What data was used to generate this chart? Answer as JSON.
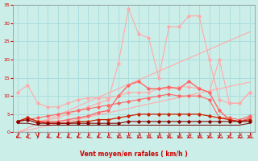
{
  "x": [
    0,
    1,
    2,
    3,
    4,
    5,
    6,
    7,
    8,
    9,
    10,
    11,
    12,
    13,
    14,
    15,
    16,
    17,
    18,
    19,
    20,
    21,
    22,
    23
  ],
  "lines": [
    {
      "y": [
        3,
        4,
        3,
        3.5,
        4,
        5,
        6,
        7,
        8,
        9,
        19,
        34,
        27,
        26,
        15,
        29,
        29,
        32,
        32,
        20,
        9,
        8,
        8,
        11
      ],
      "color": "#ffaaaa",
      "lw": 0.8,
      "marker": "D",
      "ms": 1.8,
      "zorder": 2
    },
    {
      "y": [
        0,
        1.2,
        2.4,
        3.6,
        4.8,
        6,
        7.2,
        8.4,
        9.6,
        10.8,
        12,
        13.2,
        14.4,
        15.6,
        16.8,
        18,
        19.2,
        20.4,
        21.6,
        22.8,
        24,
        25.2,
        26.4,
        27.6
      ],
      "color": "#ffaaaa",
      "lw": 0.8,
      "marker": null,
      "ms": 0,
      "zorder": 2
    },
    {
      "y": [
        11,
        13,
        8,
        7,
        7,
        8,
        9,
        9.5,
        9.5,
        9.5,
        10,
        11,
        11,
        11,
        12,
        12,
        12.5,
        12.5,
        12,
        11,
        20,
        8,
        8,
        11
      ],
      "color": "#ffaaaa",
      "lw": 0.8,
      "marker": "D",
      "ms": 1.8,
      "zorder": 2
    },
    {
      "y": [
        0,
        0.6,
        1.2,
        1.8,
        2.4,
        3,
        3.6,
        4.2,
        4.8,
        5.4,
        6,
        6.6,
        7.2,
        7.8,
        8.4,
        9,
        9.6,
        10.2,
        10.8,
        11.4,
        12,
        12.6,
        13.2,
        13.8
      ],
      "color": "#ffaaaa",
      "lw": 0.8,
      "marker": null,
      "ms": 0,
      "zorder": 2
    },
    {
      "y": [
        3,
        4,
        3,
        3,
        3,
        3.5,
        4,
        4.5,
        5.5,
        6,
        10,
        13,
        14,
        12,
        12,
        12.5,
        12,
        14,
        12,
        11,
        6,
        3.5,
        3,
        4
      ],
      "color": "#ff6666",
      "lw": 1.0,
      "marker": "D",
      "ms": 1.8,
      "zorder": 4
    },
    {
      "y": [
        3,
        3.5,
        4,
        4.5,
        5,
        5.5,
        6,
        6.5,
        7,
        7.5,
        8,
        8.5,
        9,
        9.5,
        10,
        10.5,
        10,
        10,
        10,
        9,
        4,
        4,
        3.5,
        4.5
      ],
      "color": "#ff6666",
      "lw": 0.8,
      "marker": "D",
      "ms": 1.8,
      "zorder": 3
    },
    {
      "y": [
        3,
        4,
        3,
        2.5,
        2.5,
        2.5,
        3,
        3,
        3.5,
        3.5,
        4,
        4.5,
        5,
        5,
        5,
        5,
        5,
        5,
        5,
        4.5,
        4,
        3.5,
        3,
        3.5
      ],
      "color": "#cc2200",
      "lw": 0.9,
      "marker": "D",
      "ms": 1.8,
      "zorder": 5
    },
    {
      "y": [
        3,
        3.5,
        2.5,
        2.5,
        2.5,
        2.5,
        2.5,
        2.5,
        2.5,
        2.5,
        2.5,
        3,
        3,
        3,
        3,
        3,
        3,
        3,
        3,
        3,
        3,
        3,
        3,
        3
      ],
      "color": "#880000",
      "lw": 0.8,
      "marker": "D",
      "ms": 1.8,
      "zorder": 5
    },
    {
      "y": [
        2.5,
        2.5,
        2,
        2,
        2,
        2,
        2,
        2,
        2,
        2,
        2,
        2,
        2,
        2,
        2,
        2,
        2,
        2,
        2,
        2,
        2,
        2,
        2,
        2.5
      ],
      "color": "#660000",
      "lw": 0.7,
      "marker": null,
      "ms": 0,
      "zorder": 4
    }
  ],
  "xlabel": "Vent moyen/en rafales ( km/h )",
  "xlim": [
    -0.5,
    23.5
  ],
  "ylim": [
    0,
    35
  ],
  "xticks": [
    0,
    1,
    2,
    3,
    4,
    5,
    6,
    7,
    8,
    9,
    10,
    11,
    12,
    13,
    14,
    15,
    16,
    17,
    18,
    19,
    20,
    21,
    22,
    23
  ],
  "yticks": [
    0,
    5,
    10,
    15,
    20,
    25,
    30,
    35
  ],
  "bg_color": "#cceee8",
  "grid_color": "#aadddd",
  "label_color": "#cc0000"
}
